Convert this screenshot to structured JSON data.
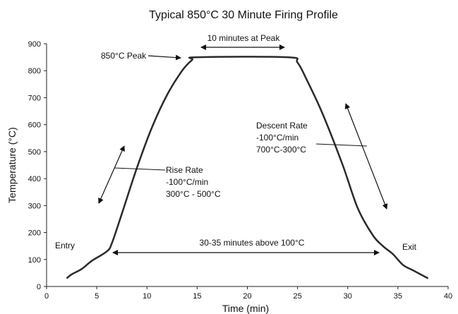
{
  "chart_data": {
    "type": "line",
    "title": "Typical 850°C 30 Minute Firing Profile",
    "xlabel": "Time (min)",
    "ylabel": "Temperature (°C)",
    "xlim": [
      0,
      40
    ],
    "ylim": [
      0,
      900
    ],
    "x_ticks": [
      0,
      5,
      10,
      15,
      20,
      25,
      30,
      35,
      40
    ],
    "y_ticks": [
      0,
      100,
      200,
      300,
      400,
      500,
      600,
      700,
      800,
      900
    ],
    "grid": false,
    "series": [
      {
        "x": [
          2,
          2.5,
          3.5,
          4.5,
          6,
          6.5,
          7.5,
          9,
          10.5,
          12,
          13.5,
          14.5,
          15,
          24,
          25,
          26,
          27.5,
          29.5,
          31,
          32.5,
          33.5,
          34.5,
          35.5,
          36.5,
          38
        ],
        "y": [
          30,
          45,
          65,
          95,
          130,
          160,
          270,
          440,
          590,
          710,
          800,
          840,
          850,
          850,
          830,
          760,
          640,
          450,
          290,
          190,
          150,
          120,
          80,
          60,
          30
        ],
        "color": "#2a2a2a"
      }
    ],
    "annotations": {
      "peak_label": "850°C Peak",
      "peak_duration": "10 minutes at Peak",
      "rise_title": "Rise Rate",
      "rise_rate": "-100°C/min",
      "rise_range": "300°C - 500°C",
      "descent_title": "Descent Rate",
      "descent_rate": "-100°C/min",
      "descent_range": "700°C-300°C",
      "entry": "Entry",
      "exit": "Exit",
      "above_100": "30-35 minutes above 100°C"
    }
  }
}
